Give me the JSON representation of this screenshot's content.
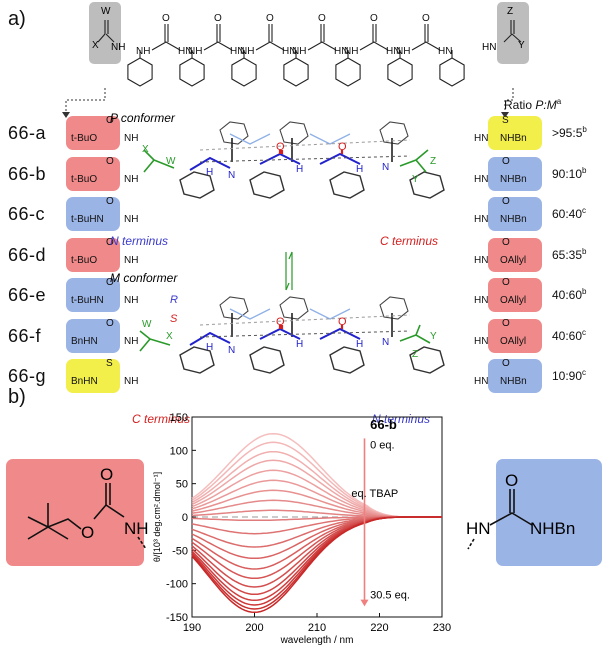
{
  "panel_a": {
    "label": "a)",
    "ratio_header": "Ratio ",
    "ratio_header_pm": "P:M",
    "ratio_header_sup": "a",
    "oligomer": {
      "left_atoms": [
        "W",
        "X",
        "NH"
      ],
      "right_atoms": [
        "Z",
        "Y",
        "HN"
      ],
      "urea_atoms": [
        "O",
        "NH",
        "HN"
      ]
    },
    "p_conformer": "P conformer",
    "m_conformer": "M conformer",
    "n_terminus": "N terminus",
    "c_terminus": "C terminus",
    "stereo_R": "R",
    "stereo_S": "S",
    "atoms": {
      "H": "H",
      "N": "N",
      "O": "O",
      "W": "W",
      "X": "X",
      "Y": "Y",
      "Z": "Z"
    },
    "rows": [
      {
        "id": "66-a",
        "left_text": "t-BuO",
        "left_atom": "O",
        "left_nh": "NH",
        "left_color": "red",
        "right_text": "NHBn",
        "right_atom": "S",
        "right_hn": "HN",
        "right_color": "yellow",
        "ratio": ">95:5",
        "ratio_sup": "b"
      },
      {
        "id": "66-b",
        "left_text": "t-BuO",
        "left_atom": "O",
        "left_nh": "NH",
        "left_color": "red",
        "right_text": "NHBn",
        "right_atom": "O",
        "right_hn": "HN",
        "right_color": "blue",
        "ratio": "90:10",
        "ratio_sup": "b"
      },
      {
        "id": "66-c",
        "left_text": "t-BuHN",
        "left_atom": "O",
        "left_nh": "NH",
        "left_color": "blue",
        "right_text": "NHBn",
        "right_atom": "O",
        "right_hn": "HN",
        "right_color": "blue",
        "ratio": "60:40",
        "ratio_sup": "c"
      },
      {
        "id": "66-d",
        "left_text": "t-BuO",
        "left_atom": "O",
        "left_nh": "NH",
        "left_color": "red",
        "right_text": "OAllyl",
        "right_atom": "O",
        "right_hn": "HN",
        "right_color": "red",
        "ratio": "65:35",
        "ratio_sup": "b"
      },
      {
        "id": "66-e",
        "left_text": "t-BuHN",
        "left_atom": "O",
        "left_nh": "NH",
        "left_color": "blue",
        "right_text": "OAllyl",
        "right_atom": "O",
        "right_hn": "HN",
        "right_color": "red",
        "ratio": "40:60",
        "ratio_sup": "b"
      },
      {
        "id": "66-f",
        "left_text": "BnHN",
        "left_atom": "O",
        "left_nh": "NH",
        "left_color": "blue",
        "right_text": "OAllyl",
        "right_atom": "O",
        "right_hn": "HN",
        "right_color": "red",
        "ratio": "40:60",
        "ratio_sup": "c"
      },
      {
        "id": "66-g",
        "left_text": "BnHN",
        "left_atom": "S",
        "left_nh": "NH",
        "left_color": "yellow",
        "right_text": "NHBn",
        "right_atom": "O",
        "right_hn": "HN",
        "right_color": "blue",
        "ratio": "10:90",
        "ratio_sup": "c"
      }
    ]
  },
  "panel_b": {
    "label": "b)",
    "left_group": {
      "o1": "O",
      "o2": "O",
      "nh": "NH"
    },
    "right_group": {
      "o": "O",
      "hn": "HN",
      "nhbn": "NHBn"
    },
    "colors": {
      "left": "#f08a8a",
      "right": "#9bb4e6"
    }
  },
  "chart_data": {
    "type": "line",
    "compound": "66-b",
    "annotation_start": "0 eq.",
    "annotation_mid": "eq. TBAP",
    "annotation_end": "30.5 eq.",
    "xlabel": "wavelength / nm",
    "ylabel": "θ/[10³ deg.cm².dmol⁻¹]",
    "xlim": [
      190,
      230
    ],
    "ylim": [
      -150,
      150
    ],
    "xticks": [
      190,
      200,
      210,
      220,
      230
    ],
    "yticks": [
      150,
      100,
      50,
      0,
      -50,
      -100,
      -150
    ],
    "x": [
      190,
      192,
      194,
      196,
      198,
      200,
      202,
      204,
      206,
      208,
      210,
      212,
      214,
      216,
      218,
      220,
      222,
      224,
      226,
      228,
      230
    ],
    "series_peak": [
      {
        "peak": 125,
        "low": 12
      },
      {
        "peak": 112,
        "low": 10
      },
      {
        "peak": 98,
        "low": 8
      },
      {
        "peak": 85,
        "low": 6
      },
      {
        "peak": 70,
        "low": 5
      },
      {
        "peak": 55,
        "low": 4
      },
      {
        "peak": 40,
        "low": 3
      },
      {
        "peak": 25,
        "low": 2
      },
      {
        "peak": 10,
        "low": 1
      },
      {
        "peak": -5,
        "low": 0
      },
      {
        "peak": -25,
        "low": 0
      },
      {
        "peak": -45,
        "low": 0
      },
      {
        "peak": -62,
        "low": 0
      },
      {
        "peak": -78,
        "low": 0
      },
      {
        "peak": -92,
        "low": 0
      },
      {
        "peak": -105,
        "low": 0
      },
      {
        "peak": -116,
        "low": 0
      },
      {
        "peak": -125,
        "low": 0
      },
      {
        "peak": -132,
        "low": 0
      },
      {
        "peak": -138,
        "low": 0
      },
      {
        "peak": -143,
        "low": 0
      }
    ]
  }
}
